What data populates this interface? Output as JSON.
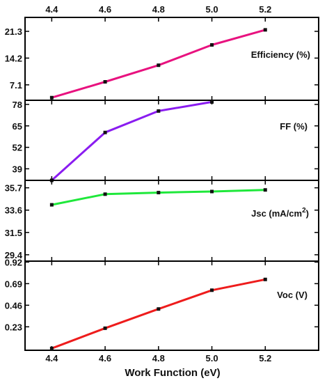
{
  "chart_data": {
    "type": "line",
    "xlabel": "Work Function (eV)",
    "x_ticks": [
      "4.4",
      "4.6",
      "4.8",
      "5.0",
      "5.2"
    ],
    "xlim": [
      4.3,
      5.4
    ],
    "grid": false,
    "panels": [
      {
        "label": "Efficiency (%)",
        "color": "#e8127f",
        "x": [
          4.4,
          4.6,
          4.8,
          5.0,
          5.2
        ],
        "y": [
          3.7,
          7.9,
          12.3,
          17.7,
          21.7
        ],
        "ylim": [
          3.0,
          25.0
        ],
        "y_ticks": [
          {
            "value": 7.1,
            "label": "7.1"
          },
          {
            "value": 14.2,
            "label": "14.2"
          },
          {
            "value": 21.3,
            "label": "21.3"
          }
        ]
      },
      {
        "label": "FF (%)",
        "label_sup": "",
        "color": "#8a1cf0",
        "x": [
          4.4,
          4.6,
          4.8,
          5.0
        ],
        "y": [
          32.0,
          61.0,
          74.0,
          79.5
        ],
        "ylim": [
          32.0,
          80.5
        ],
        "y_ticks": [
          {
            "value": 39,
            "label": "39"
          },
          {
            "value": 52,
            "label": "52"
          },
          {
            "value": 65,
            "label": "65"
          },
          {
            "value": 78,
            "label": "78"
          }
        ]
      },
      {
        "label": "Jsc (mA/cm",
        "label_sup": "2",
        "label_end": ")",
        "color": "#1fe83b",
        "x": [
          4.4,
          4.6,
          4.8,
          5.0,
          5.2
        ],
        "y": [
          34.1,
          35.1,
          35.25,
          35.35,
          35.5
        ],
        "ylim": [
          28.8,
          36.4
        ],
        "y_ticks": [
          {
            "value": 29.4,
            "label": "29.4"
          },
          {
            "value": 31.5,
            "label": "31.5"
          },
          {
            "value": 33.6,
            "label": "33.6"
          },
          {
            "value": 35.7,
            "label": "35.7"
          }
        ]
      },
      {
        "label": "Voc (V)",
        "label_sup": "",
        "color": "#ee1c1c",
        "x": [
          4.4,
          4.6,
          4.8,
          5.0,
          5.2
        ],
        "y": [
          0.0,
          0.215,
          0.42,
          0.62,
          0.735
        ],
        "ylim": [
          -0.02,
          0.93
        ],
        "y_ticks": [
          {
            "value": 0.23,
            "label": "0.23"
          },
          {
            "value": 0.46,
            "label": "0.46"
          },
          {
            "value": 0.69,
            "label": "0.69"
          },
          {
            "value": 0.92,
            "label": "0.92"
          }
        ]
      }
    ]
  }
}
